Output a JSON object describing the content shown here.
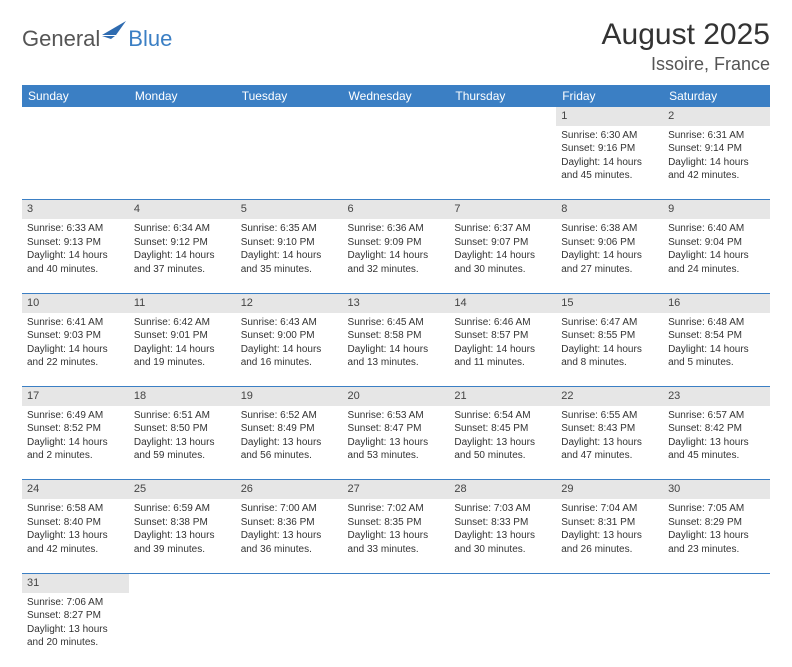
{
  "logo": {
    "general": "General",
    "blue": "Blue"
  },
  "title": {
    "month_year": "August 2025",
    "location": "Issoire, France"
  },
  "colors": {
    "header_bg": "#3b7fc4",
    "daynum_bg": "#e6e6e6",
    "text": "#333333"
  },
  "weekdays": [
    "Sunday",
    "Monday",
    "Tuesday",
    "Wednesday",
    "Thursday",
    "Friday",
    "Saturday"
  ],
  "weeks": [
    {
      "nums": [
        "",
        "",
        "",
        "",
        "",
        "1",
        "2"
      ],
      "cells": [
        null,
        null,
        null,
        null,
        null,
        {
          "sunrise": "Sunrise: 6:30 AM",
          "sunset": "Sunset: 9:16 PM",
          "day1": "Daylight: 14 hours",
          "day2": "and 45 minutes."
        },
        {
          "sunrise": "Sunrise: 6:31 AM",
          "sunset": "Sunset: 9:14 PM",
          "day1": "Daylight: 14 hours",
          "day2": "and 42 minutes."
        }
      ]
    },
    {
      "nums": [
        "3",
        "4",
        "5",
        "6",
        "7",
        "8",
        "9"
      ],
      "cells": [
        {
          "sunrise": "Sunrise: 6:33 AM",
          "sunset": "Sunset: 9:13 PM",
          "day1": "Daylight: 14 hours",
          "day2": "and 40 minutes."
        },
        {
          "sunrise": "Sunrise: 6:34 AM",
          "sunset": "Sunset: 9:12 PM",
          "day1": "Daylight: 14 hours",
          "day2": "and 37 minutes."
        },
        {
          "sunrise": "Sunrise: 6:35 AM",
          "sunset": "Sunset: 9:10 PM",
          "day1": "Daylight: 14 hours",
          "day2": "and 35 minutes."
        },
        {
          "sunrise": "Sunrise: 6:36 AM",
          "sunset": "Sunset: 9:09 PM",
          "day1": "Daylight: 14 hours",
          "day2": "and 32 minutes."
        },
        {
          "sunrise": "Sunrise: 6:37 AM",
          "sunset": "Sunset: 9:07 PM",
          "day1": "Daylight: 14 hours",
          "day2": "and 30 minutes."
        },
        {
          "sunrise": "Sunrise: 6:38 AM",
          "sunset": "Sunset: 9:06 PM",
          "day1": "Daylight: 14 hours",
          "day2": "and 27 minutes."
        },
        {
          "sunrise": "Sunrise: 6:40 AM",
          "sunset": "Sunset: 9:04 PM",
          "day1": "Daylight: 14 hours",
          "day2": "and 24 minutes."
        }
      ]
    },
    {
      "nums": [
        "10",
        "11",
        "12",
        "13",
        "14",
        "15",
        "16"
      ],
      "cells": [
        {
          "sunrise": "Sunrise: 6:41 AM",
          "sunset": "Sunset: 9:03 PM",
          "day1": "Daylight: 14 hours",
          "day2": "and 22 minutes."
        },
        {
          "sunrise": "Sunrise: 6:42 AM",
          "sunset": "Sunset: 9:01 PM",
          "day1": "Daylight: 14 hours",
          "day2": "and 19 minutes."
        },
        {
          "sunrise": "Sunrise: 6:43 AM",
          "sunset": "Sunset: 9:00 PM",
          "day1": "Daylight: 14 hours",
          "day2": "and 16 minutes."
        },
        {
          "sunrise": "Sunrise: 6:45 AM",
          "sunset": "Sunset: 8:58 PM",
          "day1": "Daylight: 14 hours",
          "day2": "and 13 minutes."
        },
        {
          "sunrise": "Sunrise: 6:46 AM",
          "sunset": "Sunset: 8:57 PM",
          "day1": "Daylight: 14 hours",
          "day2": "and 11 minutes."
        },
        {
          "sunrise": "Sunrise: 6:47 AM",
          "sunset": "Sunset: 8:55 PM",
          "day1": "Daylight: 14 hours",
          "day2": "and 8 minutes."
        },
        {
          "sunrise": "Sunrise: 6:48 AM",
          "sunset": "Sunset: 8:54 PM",
          "day1": "Daylight: 14 hours",
          "day2": "and 5 minutes."
        }
      ]
    },
    {
      "nums": [
        "17",
        "18",
        "19",
        "20",
        "21",
        "22",
        "23"
      ],
      "cells": [
        {
          "sunrise": "Sunrise: 6:49 AM",
          "sunset": "Sunset: 8:52 PM",
          "day1": "Daylight: 14 hours",
          "day2": "and 2 minutes."
        },
        {
          "sunrise": "Sunrise: 6:51 AM",
          "sunset": "Sunset: 8:50 PM",
          "day1": "Daylight: 13 hours",
          "day2": "and 59 minutes."
        },
        {
          "sunrise": "Sunrise: 6:52 AM",
          "sunset": "Sunset: 8:49 PM",
          "day1": "Daylight: 13 hours",
          "day2": "and 56 minutes."
        },
        {
          "sunrise": "Sunrise: 6:53 AM",
          "sunset": "Sunset: 8:47 PM",
          "day1": "Daylight: 13 hours",
          "day2": "and 53 minutes."
        },
        {
          "sunrise": "Sunrise: 6:54 AM",
          "sunset": "Sunset: 8:45 PM",
          "day1": "Daylight: 13 hours",
          "day2": "and 50 minutes."
        },
        {
          "sunrise": "Sunrise: 6:55 AM",
          "sunset": "Sunset: 8:43 PM",
          "day1": "Daylight: 13 hours",
          "day2": "and 47 minutes."
        },
        {
          "sunrise": "Sunrise: 6:57 AM",
          "sunset": "Sunset: 8:42 PM",
          "day1": "Daylight: 13 hours",
          "day2": "and 45 minutes."
        }
      ]
    },
    {
      "nums": [
        "24",
        "25",
        "26",
        "27",
        "28",
        "29",
        "30"
      ],
      "cells": [
        {
          "sunrise": "Sunrise: 6:58 AM",
          "sunset": "Sunset: 8:40 PM",
          "day1": "Daylight: 13 hours",
          "day2": "and 42 minutes."
        },
        {
          "sunrise": "Sunrise: 6:59 AM",
          "sunset": "Sunset: 8:38 PM",
          "day1": "Daylight: 13 hours",
          "day2": "and 39 minutes."
        },
        {
          "sunrise": "Sunrise: 7:00 AM",
          "sunset": "Sunset: 8:36 PM",
          "day1": "Daylight: 13 hours",
          "day2": "and 36 minutes."
        },
        {
          "sunrise": "Sunrise: 7:02 AM",
          "sunset": "Sunset: 8:35 PM",
          "day1": "Daylight: 13 hours",
          "day2": "and 33 minutes."
        },
        {
          "sunrise": "Sunrise: 7:03 AM",
          "sunset": "Sunset: 8:33 PM",
          "day1": "Daylight: 13 hours",
          "day2": "and 30 minutes."
        },
        {
          "sunrise": "Sunrise: 7:04 AM",
          "sunset": "Sunset: 8:31 PM",
          "day1": "Daylight: 13 hours",
          "day2": "and 26 minutes."
        },
        {
          "sunrise": "Sunrise: 7:05 AM",
          "sunset": "Sunset: 8:29 PM",
          "day1": "Daylight: 13 hours",
          "day2": "and 23 minutes."
        }
      ]
    },
    {
      "nums": [
        "31",
        "",
        "",
        "",
        "",
        "",
        ""
      ],
      "cells": [
        {
          "sunrise": "Sunrise: 7:06 AM",
          "sunset": "Sunset: 8:27 PM",
          "day1": "Daylight: 13 hours",
          "day2": "and 20 minutes."
        },
        null,
        null,
        null,
        null,
        null,
        null
      ]
    }
  ]
}
